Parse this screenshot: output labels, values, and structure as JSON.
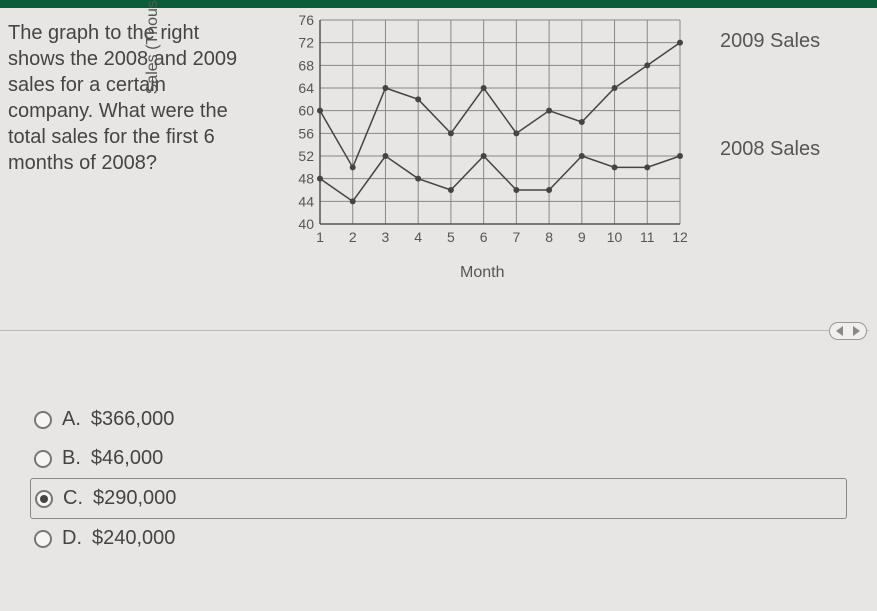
{
  "question_text": "The graph to the right shows the 2008 and 2009 sales for a certain company. What were the total sales for the first 6 months of 2008?",
  "chart": {
    "type": "line",
    "ylabel": "Sales (Thousands of $)",
    "xlabel": "Month",
    "x_ticks": [
      "1",
      "2",
      "3",
      "4",
      "5",
      "6",
      "7",
      "8",
      "9",
      "10",
      "11",
      "12"
    ],
    "y_ticks": [
      40,
      44,
      48,
      52,
      56,
      60,
      64,
      68,
      72,
      76
    ],
    "ylim": [
      40,
      76
    ],
    "xlim": [
      1,
      12
    ],
    "background_color": "#e8e6e4",
    "grid_color": "#888888",
    "axis_color": "#555555",
    "series": [
      {
        "name": "2009 Sales",
        "color": "#444444",
        "marker": "circle",
        "values": [
          60,
          50,
          64,
          62,
          56,
          64,
          56,
          60,
          58,
          64,
          68,
          72
        ]
      },
      {
        "name": "2008 Sales",
        "color": "#444444",
        "marker": "circle",
        "values": [
          48,
          44,
          52,
          48,
          46,
          52,
          46,
          46,
          52,
          50,
          50,
          52
        ]
      }
    ],
    "legend": {
      "s2009": "2009 Sales",
      "s2008": "2008 Sales"
    }
  },
  "options": {
    "a": {
      "letter": "A.",
      "text": "$366,000",
      "selected": false
    },
    "b": {
      "letter": "B.",
      "text": "$46,000",
      "selected": false
    },
    "c": {
      "letter": "C.",
      "text": "$290,000",
      "selected": true
    },
    "d": {
      "letter": "D.",
      "text": "$240,000",
      "selected": false
    }
  },
  "colors": {
    "page_bg": "#e8e6e4",
    "text": "#444444",
    "border": "#888888"
  }
}
